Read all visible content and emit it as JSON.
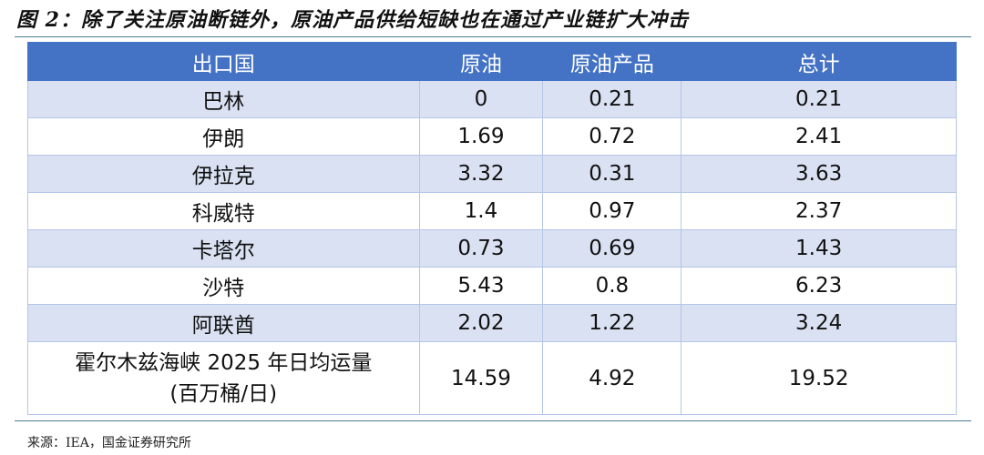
{
  "title": "图 2：除了关注原油断链外，原油产品供给短缺也在通过产业链扩大冲击",
  "table": {
    "headers": [
      "出口国",
      "原油",
      "原油产品",
      "总计"
    ],
    "rows": [
      [
        "巴林",
        "0",
        "0.21",
        "0.21"
      ],
      [
        "伊朗",
        "1.69",
        "0.72",
        "2.41"
      ],
      [
        "伊拉克",
        "3.32",
        "0.31",
        "3.63"
      ],
      [
        "科威特",
        "1.4",
        "0.97",
        "2.37"
      ],
      [
        "卡塔尔",
        "0.73",
        "0.69",
        "1.43"
      ],
      [
        "沙特",
        "5.43",
        "0.8",
        "6.23"
      ],
      [
        "阿联酋",
        "2.02",
        "1.22",
        "3.24"
      ]
    ],
    "total": {
      "label_line1": "霍尔木兹海峡 2025 年日均运量",
      "label_line2": "(百万桶/日)",
      "crude": "14.59",
      "products": "4.92",
      "total": "19.52"
    }
  },
  "source": "来源：IEA，国金证券研究所",
  "colors": {
    "header": "#4472C4",
    "band": "#D9E1F2"
  }
}
